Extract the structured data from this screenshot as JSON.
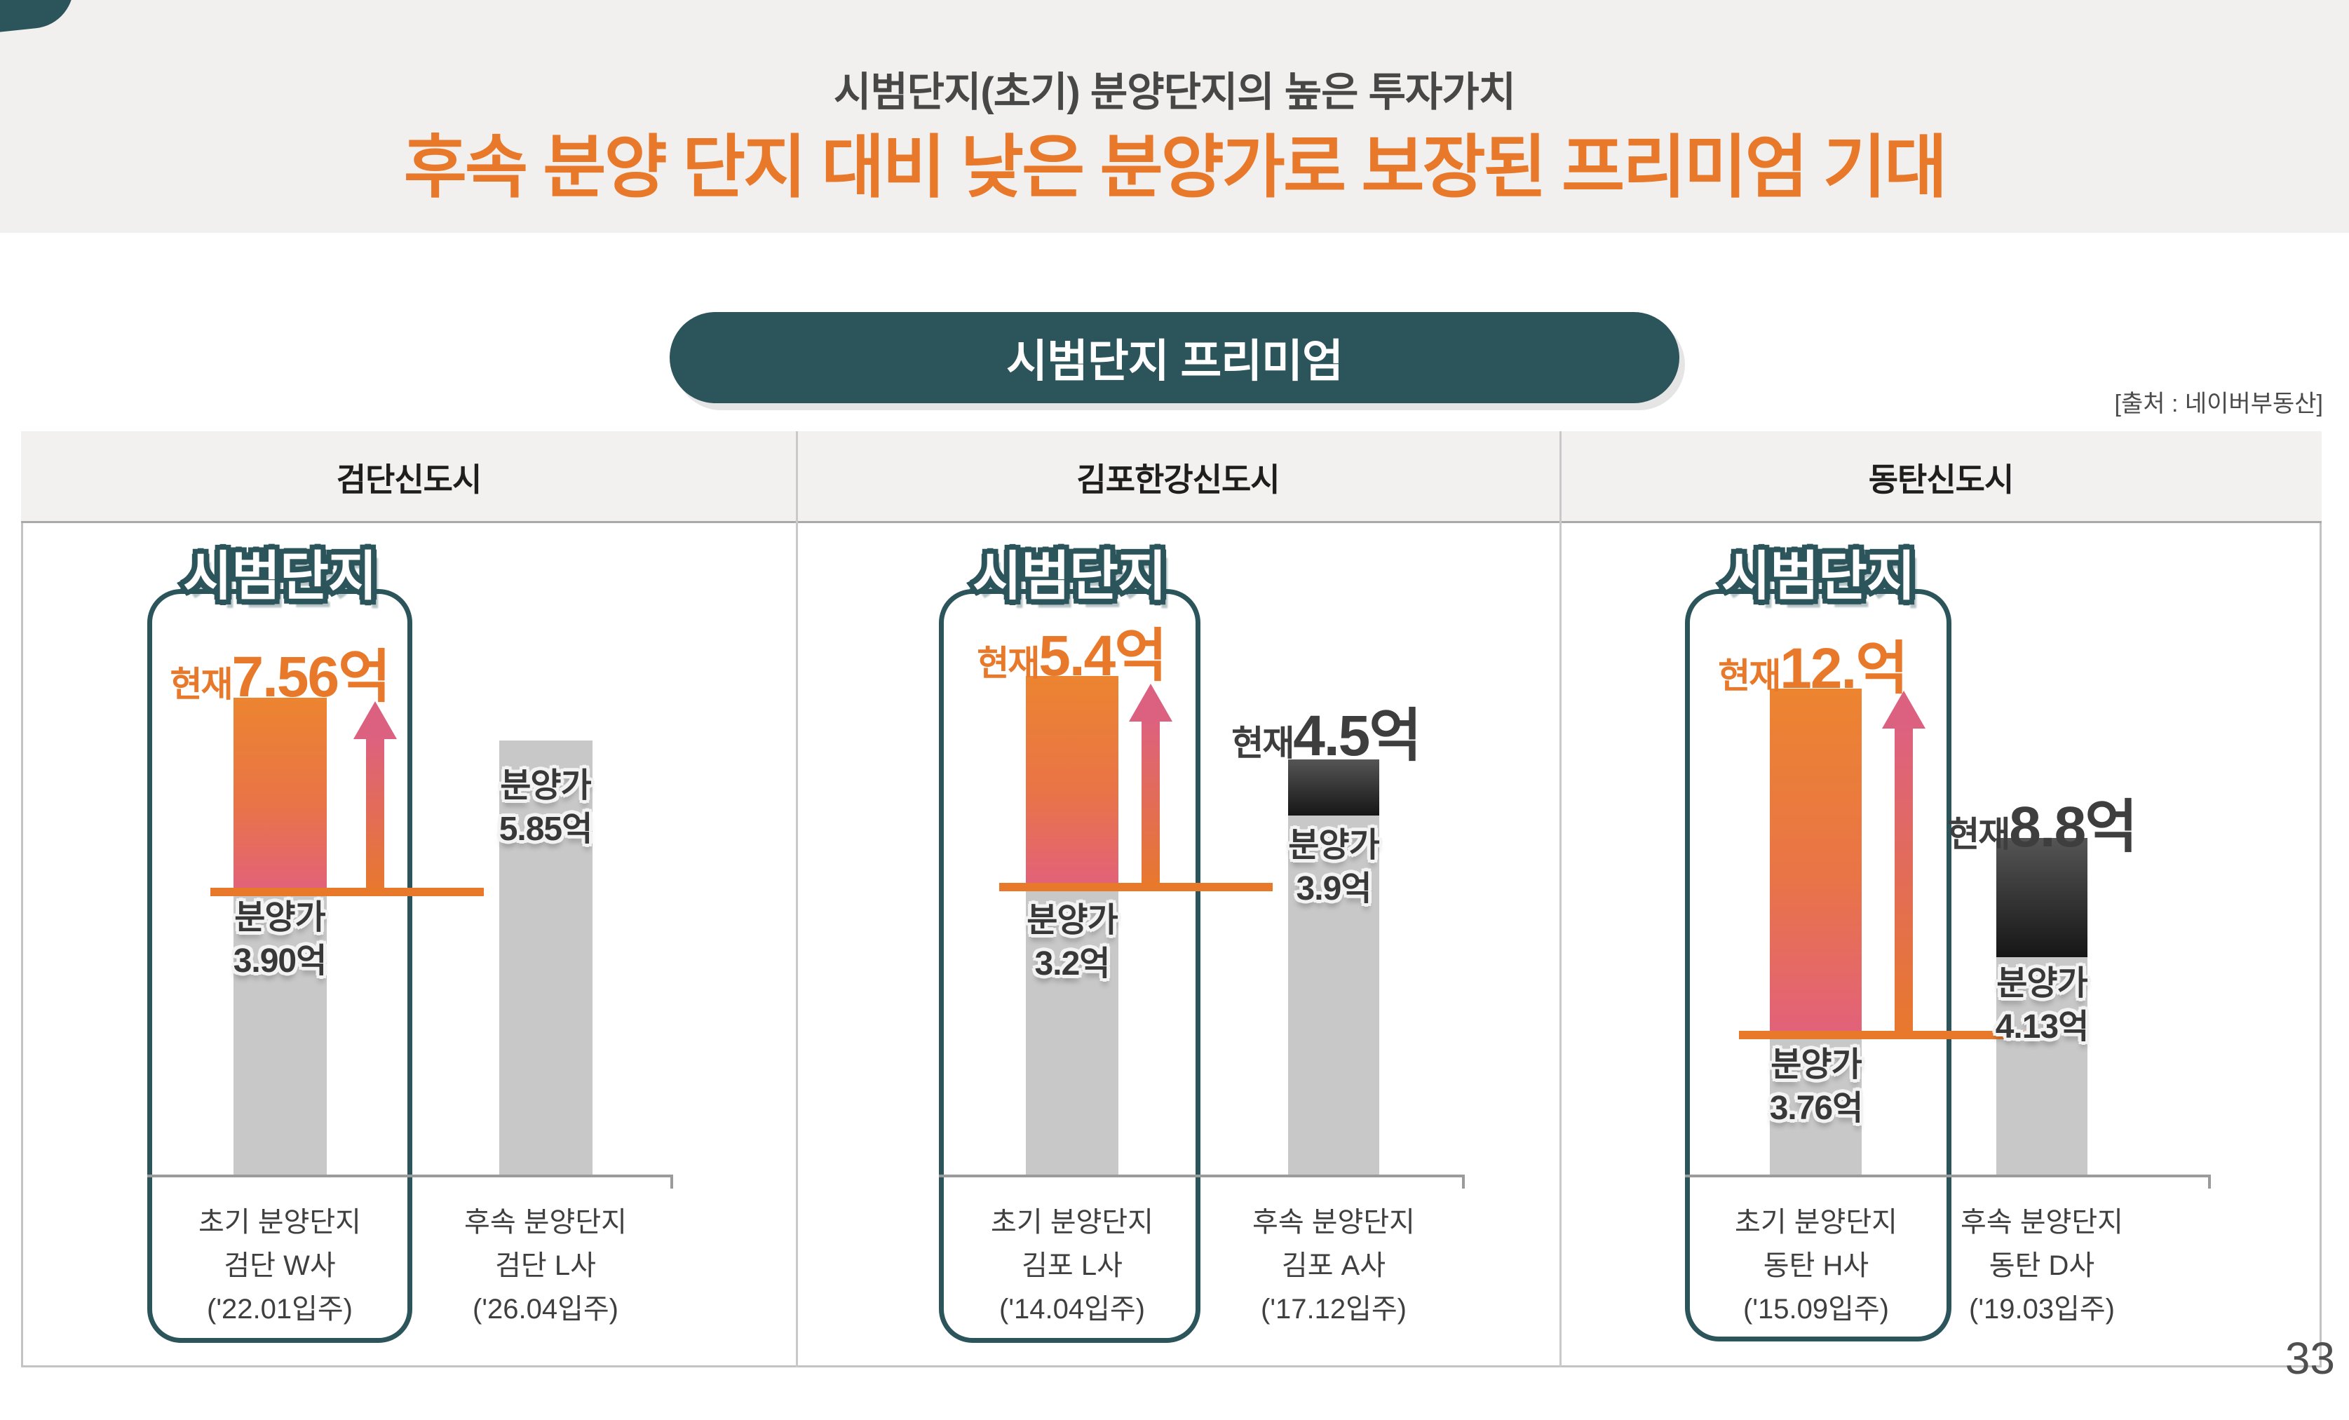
{
  "slide": {
    "subtitle": "시범단지(초기) 분양단지의 높은 투자가치",
    "title": "후속 분양 단지 대비 낮은 분양가로 보장된 프리미엄 기대",
    "badge": "시범단지 프리미엄",
    "source": "[출처 : 네이버부동산]",
    "page_number": "33"
  },
  "colors": {
    "accent_orange": "#E8792B",
    "accent_pink": "#E2617B",
    "teal": "#2B545B",
    "bar_gray": "#C8C8C8",
    "bar_dark": "#1A1A1A",
    "text_dark": "#3F3F3F",
    "band_bg": "#F1F0EE"
  },
  "chart_data": [
    {
      "type": "bar",
      "city": "검단신도시",
      "pilot_badge": "시범단지",
      "unit": "억원",
      "bars": [
        {
          "series": "초기 분양단지 (시범단지)",
          "current": 7.56,
          "sale": 3.9,
          "current_label": "현재",
          "current_text": "7.56억",
          "sale_label": "분양가",
          "sale_text": "3.90억",
          "xlabel": [
            "초기 분양단지",
            "검단 W사",
            "('22.01입주)"
          ]
        },
        {
          "series": "후속 분양단지",
          "sale": 5.85,
          "sale_label": "분양가",
          "sale_text": "5.85억",
          "xlabel": [
            "후속 분양단지",
            "검단 L사",
            "('26.04입주)"
          ]
        }
      ]
    },
    {
      "type": "bar",
      "city": "김포한강신도시",
      "pilot_badge": "시범단지",
      "unit": "억원",
      "bars": [
        {
          "series": "초기 분양단지 (시범단지)",
          "current": 5.4,
          "sale": 3.2,
          "current_label": "현재",
          "current_text": "5.4억",
          "sale_label": "분양가",
          "sale_text": "3.2억",
          "xlabel": [
            "초기 분양단지",
            "김포 L사",
            "('14.04입주)"
          ]
        },
        {
          "series": "후속 분양단지",
          "current": 4.5,
          "sale": 3.9,
          "current_label": "현재",
          "current_text": "4.5억",
          "sale_label": "분양가",
          "sale_text": "3.9억",
          "xlabel": [
            "후속 분양단지",
            "김포 A사",
            "('17.12입주)"
          ]
        }
      ]
    },
    {
      "type": "bar",
      "city": "동탄신도시",
      "pilot_badge": "시범단지",
      "unit": "억원",
      "bars": [
        {
          "series": "초기 분양단지 (시범단지)",
          "current": 12,
          "sale": 3.76,
          "current_label": "현재",
          "current_text": "12.억",
          "sale_label": "분양가",
          "sale_text": "3.76억",
          "xlabel": [
            "초기 분양단지",
            "동탄 H사",
            "('15.09입주)"
          ]
        },
        {
          "series": "후속 분양단지",
          "current": 8.8,
          "sale": 4.13,
          "current_label": "현재",
          "current_text": "8.8억",
          "sale_label": "분양가",
          "sale_text": "4.13억",
          "xlabel": [
            "후속 분양단지",
            "동탄 D사",
            "('19.03입주)"
          ]
        }
      ]
    }
  ]
}
